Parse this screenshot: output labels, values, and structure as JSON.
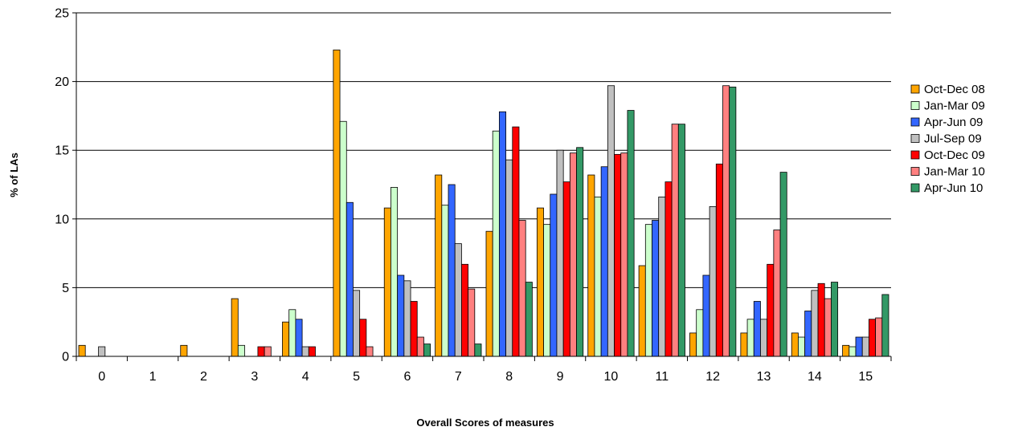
{
  "chart_data": {
    "type": "bar",
    "title": "",
    "xlabel": "Overall Scores of measures",
    "ylabel": "% of LAs",
    "ylim": [
      0,
      25
    ],
    "yticks": [
      0,
      5,
      10,
      15,
      20,
      25
    ],
    "grid": true,
    "legend_position": "right",
    "categories": [
      "0",
      "1",
      "2",
      "3",
      "4",
      "5",
      "6",
      "7",
      "8",
      "9",
      "10",
      "11",
      "12",
      "13",
      "14",
      "15"
    ],
    "series": [
      {
        "name": "Oct-Dec 08",
        "color": "#FFA500",
        "values": [
          0.8,
          0,
          0.8,
          4.2,
          2.5,
          22.3,
          10.8,
          13.2,
          9.1,
          10.8,
          13.2,
          6.6,
          1.7,
          1.7,
          1.7,
          0.8
        ]
      },
      {
        "name": "Jan-Mar 09",
        "color": "#CCFFCC",
        "values": [
          0,
          0,
          0,
          0.8,
          3.4,
          17.1,
          12.3,
          11.0,
          16.4,
          9.6,
          11.6,
          9.6,
          3.4,
          2.7,
          1.4,
          0.7
        ]
      },
      {
        "name": "Apr-Jun 09",
        "color": "#3366FF",
        "values": [
          0,
          0,
          0,
          0,
          2.7,
          11.2,
          5.9,
          12.5,
          17.8,
          11.8,
          13.8,
          9.9,
          5.9,
          4.0,
          3.3,
          1.4
        ]
      },
      {
        "name": "Jul-Sep 09",
        "color": "#C0C0C0",
        "values": [
          0.7,
          0,
          0,
          0,
          0.7,
          4.8,
          5.5,
          8.2,
          14.3,
          15.0,
          19.7,
          11.6,
          10.9,
          2.7,
          4.8,
          1.4
        ]
      },
      {
        "name": "Oct-Dec 09",
        "color": "#FF0000",
        "values": [
          0,
          0,
          0,
          0.7,
          0.7,
          2.7,
          4.0,
          6.7,
          16.7,
          12.7,
          14.7,
          12.7,
          14.0,
          6.7,
          5.3,
          2.7
        ]
      },
      {
        "name": "Jan-Mar 10",
        "color": "#FF8080",
        "values": [
          0,
          0,
          0,
          0.7,
          0,
          0.7,
          1.4,
          4.9,
          9.9,
          14.8,
          14.8,
          16.9,
          19.7,
          9.2,
          4.2,
          2.8
        ]
      },
      {
        "name": "Apr-Jun 10",
        "color": "#339966",
        "values": [
          0,
          0,
          0,
          0,
          0,
          0,
          0.9,
          0.9,
          5.4,
          15.2,
          17.9,
          16.9,
          19.6,
          13.4,
          5.4,
          4.5
        ]
      }
    ]
  }
}
